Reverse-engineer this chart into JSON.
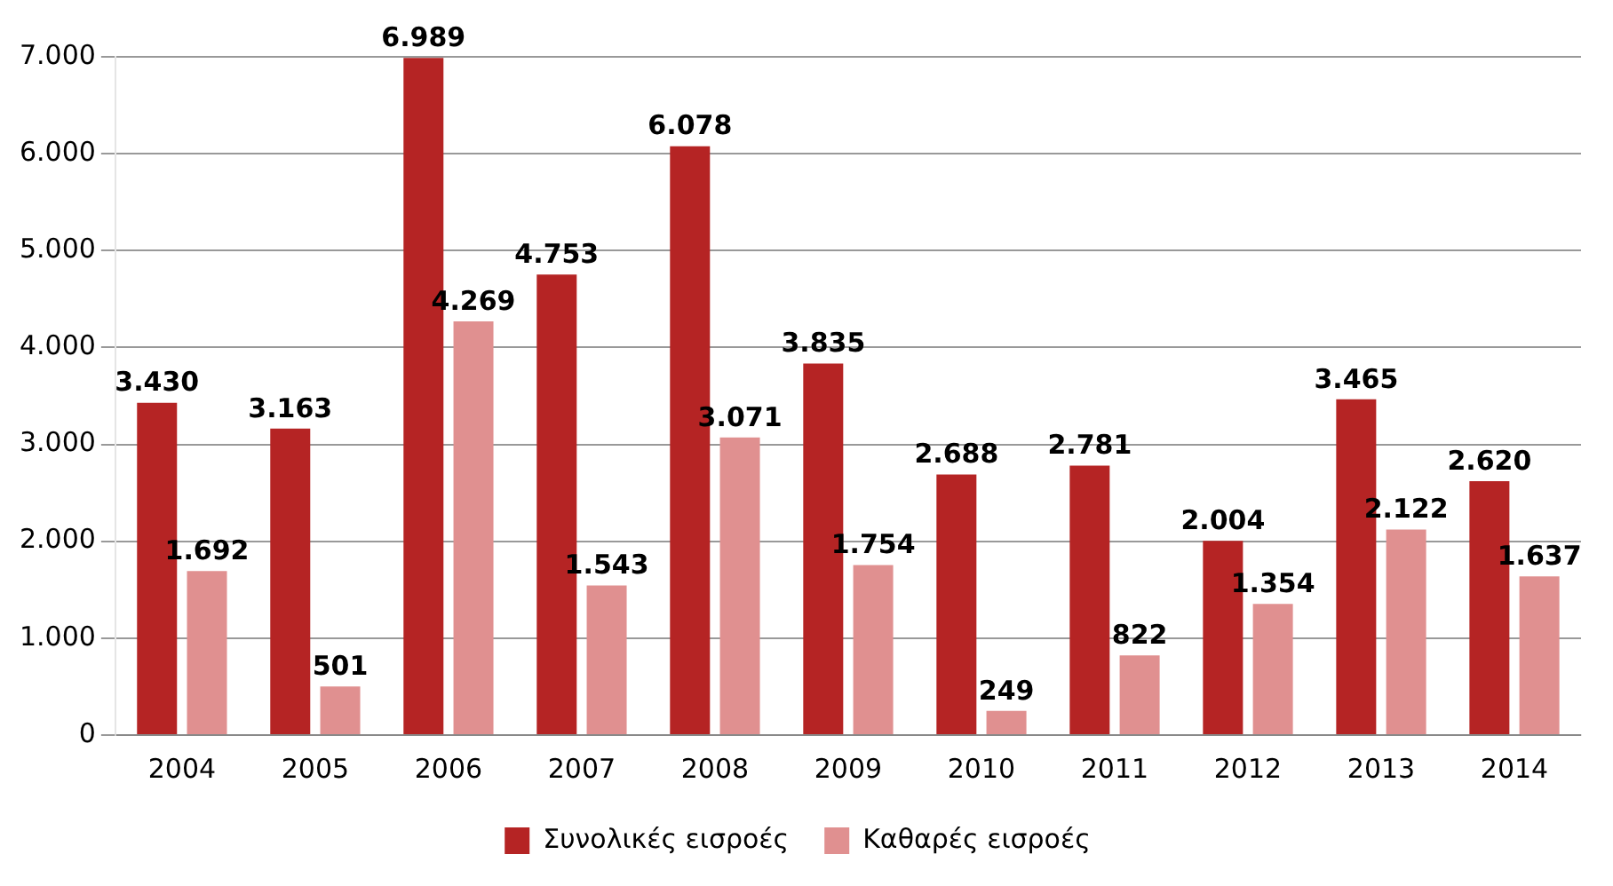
{
  "chart_data": {
    "type": "bar",
    "categories": [
      "2004",
      "2005",
      "2006",
      "2007",
      "2008",
      "2009",
      "2010",
      "2011",
      "2012",
      "2013",
      "2014"
    ],
    "series": [
      {
        "name": "Συνολικές εισροές",
        "color": "#b52424",
        "values": [
          3430,
          3163,
          6989,
          4753,
          6078,
          3835,
          2688,
          2781,
          2004,
          3465,
          2620
        ],
        "value_labels": [
          "3.430",
          "3.163",
          "6.989",
          "4.753",
          "6.078",
          "3.835",
          "2.688",
          "2.781",
          "2.004",
          "3.465",
          "2.620"
        ]
      },
      {
        "name": "Καθαρές εισροές",
        "color": "#e09090",
        "values": [
          1692,
          501,
          4269,
          1543,
          3071,
          1754,
          249,
          822,
          1354,
          2122,
          1637
        ],
        "value_labels": [
          "1.692",
          "501",
          "4.269",
          "1.543",
          "3.071",
          "1.754",
          "249",
          "822",
          "1.354",
          "2.122",
          "1.637"
        ]
      }
    ],
    "ylim": [
      0,
      7000
    ],
    "yticks": [
      {
        "value": 0,
        "label": "0"
      },
      {
        "value": 1000,
        "label": "1.000"
      },
      {
        "value": 2000,
        "label": "2.000"
      },
      {
        "value": 3000,
        "label": "3.000"
      },
      {
        "value": 4000,
        "label": "4.000"
      },
      {
        "value": 5000,
        "label": "5.000"
      },
      {
        "value": 6000,
        "label": "6.000"
      },
      {
        "value": 7000,
        "label": "7.000"
      }
    ],
    "grid": "y",
    "legend": "bottom"
  }
}
